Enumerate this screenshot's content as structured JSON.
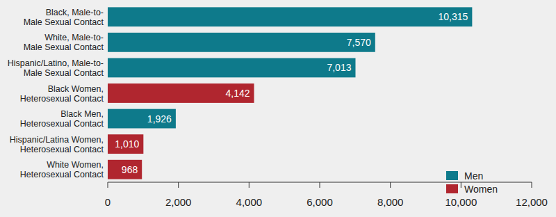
{
  "chart_data": {
    "type": "bar",
    "orientation": "horizontal",
    "categories": [
      "Black, Male-to-\nMale Sexual Contact",
      "White, Male-to-\nMale Sexual Contact",
      "Hispanic/Latino, Male-to-\nMale Sexual Contact",
      "Black Women,\nHeterosexual Contact",
      "Black Men,\nHeterosexual Contact",
      "Hispanic/Latina Women,\nHeterosexual Contact",
      "White Women,\nHeterosexual Contact"
    ],
    "series": [
      {
        "name": "Men",
        "color": "#0e7a8b",
        "values": [
          10315,
          7570,
          7013,
          null,
          1926,
          null,
          null
        ],
        "value_labels": [
          "10,315",
          "7,570",
          "7,013",
          null,
          "1,926",
          null,
          null
        ]
      },
      {
        "name": "Women",
        "color": "#b0262f",
        "values": [
          null,
          null,
          null,
          4142,
          null,
          1010,
          968
        ],
        "value_labels": [
          null,
          null,
          null,
          "4,142",
          null,
          "1,010",
          "968"
        ]
      }
    ],
    "xlim": [
      0,
      12000
    ],
    "xticks": [
      0,
      {
        "value": 2000,
        "label": "2,000"
      },
      {
        "value": 4000,
        "label": "4,000"
      },
      {
        "value": 6000,
        "label": "6,000"
      },
      {
        "value": 8000,
        "label": "8,000"
      },
      {
        "value": 10000,
        "label": "10,000"
      },
      {
        "value": 12000,
        "label": "12,000"
      }
    ],
    "grid": false,
    "legend": "lower right",
    "data_labels": true
  }
}
